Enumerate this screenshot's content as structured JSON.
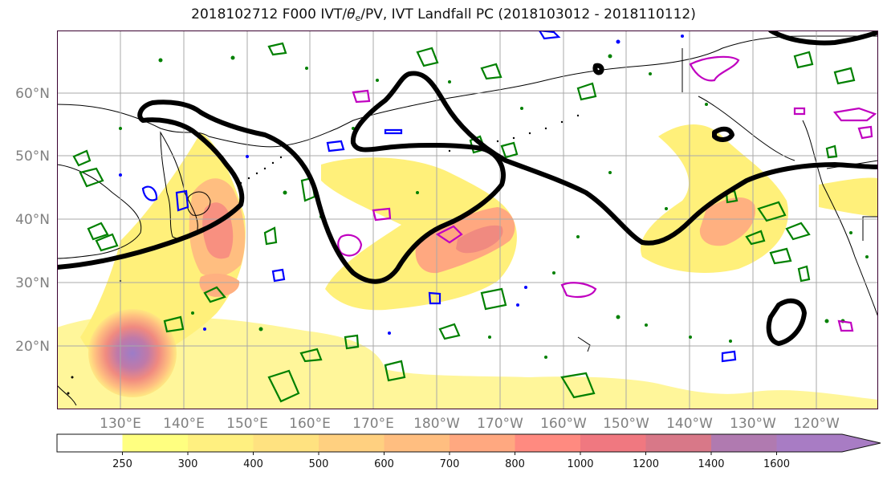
{
  "title": {
    "pre": "2018102712 F000 IVT/",
    "theta": "θ",
    "sub": "e",
    "post": "/PV, IVT Landfall PC (2018103012 - 2018110112)"
  },
  "map": {
    "type": "map",
    "region": "North Pacific",
    "lat_labels": [
      {
        "deg": 60,
        "label": "60°N"
      },
      {
        "deg": 50,
        "label": "50°N"
      },
      {
        "deg": 40,
        "label": "40°N"
      },
      {
        "deg": 30,
        "label": "30°N"
      },
      {
        "deg": 20,
        "label": "20°N"
      }
    ],
    "lon_labels": [
      {
        "deg": 130,
        "label": "130°E"
      },
      {
        "deg": 140,
        "label": "140°E"
      },
      {
        "deg": 150,
        "label": "150°E"
      },
      {
        "deg": 160,
        "label": "160°E"
      },
      {
        "deg": 170,
        "label": "170°E"
      },
      {
        "deg": 180,
        "label": "180°W"
      },
      {
        "deg": 190,
        "label": "170°W"
      },
      {
        "deg": 200,
        "label": "160°W"
      },
      {
        "deg": 210,
        "label": "150°W"
      },
      {
        "deg": 220,
        "label": "140°W"
      },
      {
        "deg": 230,
        "label": "130°W"
      },
      {
        "deg": 240,
        "label": "120°W"
      }
    ],
    "gridlines": true,
    "colors": {
      "pc_contour": "#000000",
      "theta_e": "#008000",
      "pv_positive": "#c000c0",
      "pv_negative": "#0000ff",
      "coastline": "#000000",
      "frame": "#3a0030"
    }
  },
  "colorbar": {
    "ticks": [
      "250",
      "300",
      "400",
      "500",
      "600",
      "700",
      "800",
      "1000",
      "1200",
      "1400",
      "1600"
    ],
    "colors": [
      "#ffffff",
      "#ffff80",
      "#fff080",
      "#ffe280",
      "#ffd080",
      "#ffbe80",
      "#ffa880",
      "#ff8a80",
      "#f07880",
      "#d87888",
      "#b07ab0",
      "#a87cc4"
    ],
    "extend": "max"
  }
}
